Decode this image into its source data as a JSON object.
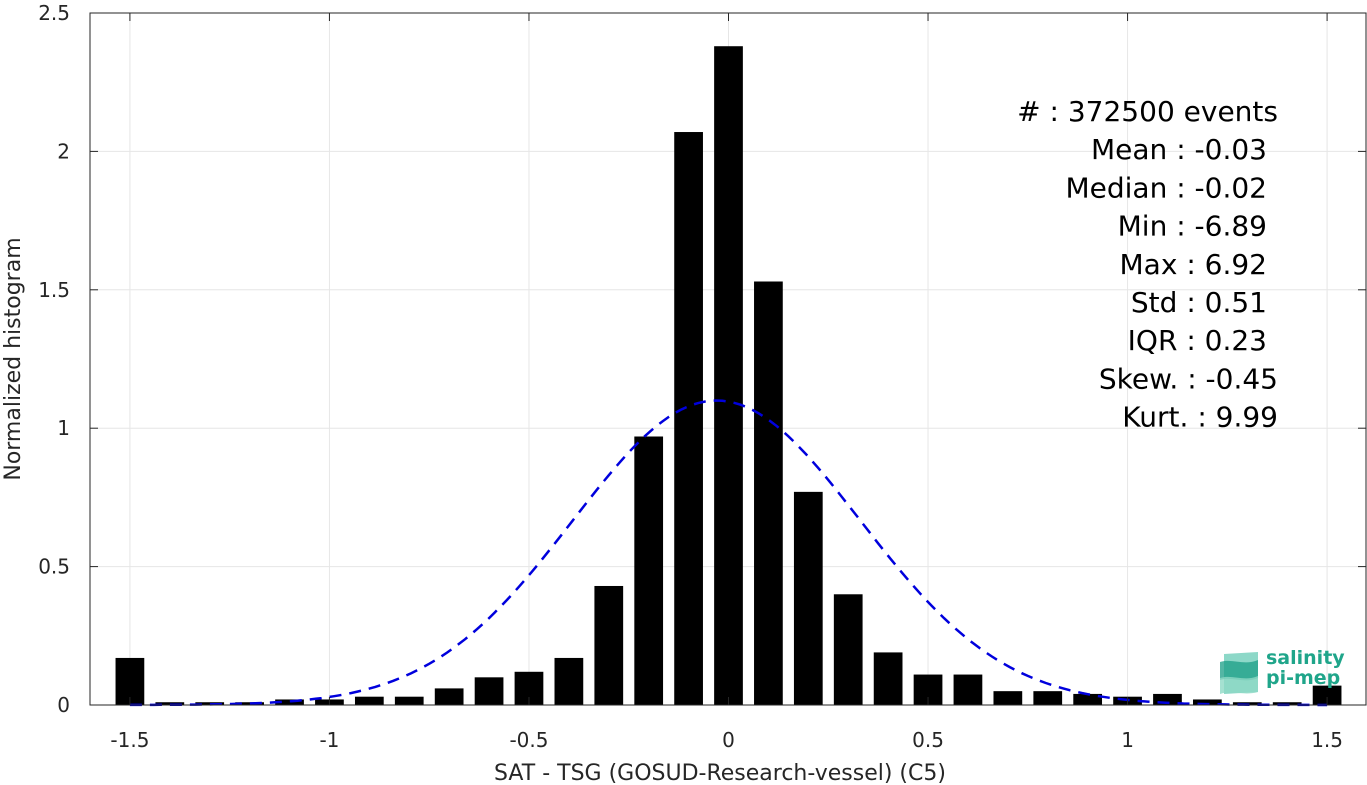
{
  "chart_data": {
    "type": "bar",
    "xlabel": "SAT - TSG (GOSUD-Research-vessel) (C5)",
    "ylabel": "Normalized histogram",
    "xlim": [
      -1.6,
      1.6
    ],
    "ylim": [
      0,
      2.5
    ],
    "xticks": [
      -1.5,
      -1,
      -0.5,
      0,
      0.5,
      1,
      1.5
    ],
    "xtick_labels": [
      "-1.5",
      "-1",
      "-0.5",
      "0",
      "0.5",
      "1",
      "1.5"
    ],
    "yticks": [
      0,
      0.5,
      1,
      1.5,
      2,
      2.5
    ],
    "ytick_labels": [
      "0",
      "0.5",
      "1",
      "1.5",
      "2",
      "2.5"
    ],
    "grid": true,
    "bar_color": "#000000",
    "bin_width": 0.1,
    "bins": [
      -1.5,
      -1.4,
      -1.3,
      -1.2,
      -1.1,
      -1.0,
      -0.9,
      -0.8,
      -0.7,
      -0.6,
      -0.5,
      -0.4,
      -0.3,
      -0.2,
      -0.1,
      0.0,
      0.1,
      0.2,
      0.3,
      0.4,
      0.5,
      0.6,
      0.7,
      0.8,
      0.9,
      1.0,
      1.1,
      1.2,
      1.3,
      1.4,
      1.5
    ],
    "values": [
      0.17,
      0.01,
      0.01,
      0.01,
      0.02,
      0.02,
      0.03,
      0.03,
      0.06,
      0.1,
      0.12,
      0.17,
      0.43,
      0.97,
      2.07,
      2.38,
      1.53,
      0.77,
      0.4,
      0.19,
      0.11,
      0.11,
      0.05,
      0.05,
      0.04,
      0.03,
      0.04,
      0.02,
      0.01,
      0.01,
      0.07
    ],
    "fit_curve": {
      "type": "gaussian",
      "style": "dashed",
      "color": "#0000dd",
      "mean": -0.03,
      "std": 0.36,
      "peak": 1.1
    },
    "stats": [
      {
        "label": "#",
        "value": ": 372500 events"
      },
      {
        "label": "Mean",
        "value": ": -0.03"
      },
      {
        "label": "Median",
        "value": ": -0.02"
      },
      {
        "label": "Min",
        "value": ": -6.89"
      },
      {
        "label": "Max",
        "value": ": 6.92"
      },
      {
        "label": "Std",
        "value": ": 0.51"
      },
      {
        "label": "IQR",
        "value": ": 0.23"
      },
      {
        "label": "Skew.",
        "value": ": -0.45"
      },
      {
        "label": "Kurt.",
        "value": ": 9.99"
      }
    ]
  },
  "logo": {
    "line1": "salinity",
    "line2": "pi-mep",
    "color": "#1fa58a"
  }
}
